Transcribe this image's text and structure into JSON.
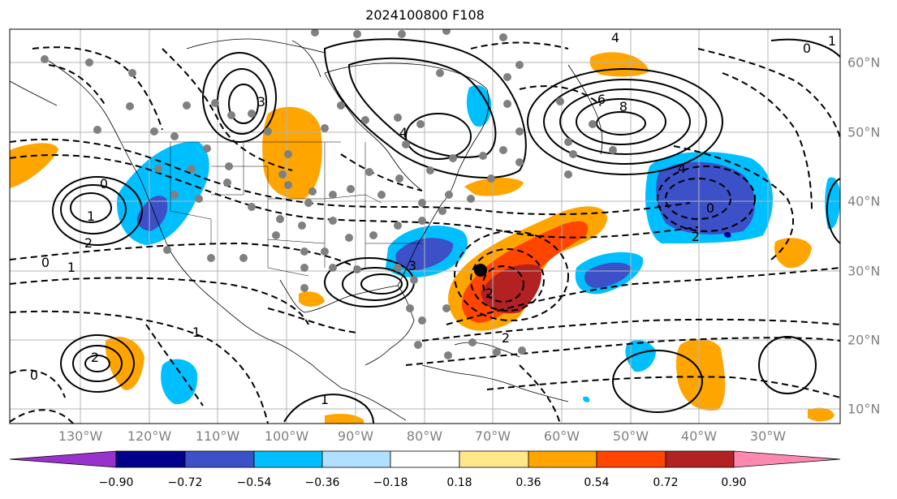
{
  "title": "2024100800 F108",
  "lon_labels": [
    "130°W",
    "120°W",
    "110°W",
    "100°W",
    "90°W",
    "80°W",
    "70°W",
    "60°W",
    "50°W",
    "40°W",
    "30°W"
  ],
  "lat_labels": [
    "60°N",
    "50°N",
    "40°N",
    "30°N",
    "20°N",
    "10°N"
  ],
  "colorbar": {
    "ticks": [
      "−0.90",
      "−0.72",
      "−0.54",
      "−0.36",
      "−0.18",
      "0.18",
      "0.36",
      "0.54",
      "0.72",
      "0.90"
    ],
    "colors": [
      "#9932cc",
      "#00008b",
      "#3c50c8",
      "#00bfff",
      "#b0e0ff",
      "#ffffff",
      "#ffe88a",
      "#ffa500",
      "#ff4500",
      "#b22222",
      "#ff88b0"
    ]
  },
  "contour_labels": [
    "0",
    "1",
    "2",
    "3",
    "4",
    "6",
    "8",
    "0",
    "1",
    "2",
    "3",
    "4",
    "2",
    "1",
    "0",
    "2",
    "1",
    "0",
    "4",
    "2",
    "1",
    "0"
  ],
  "colors": {
    "axis_label": "#808080",
    "grid": "#b4b4b4"
  }
}
